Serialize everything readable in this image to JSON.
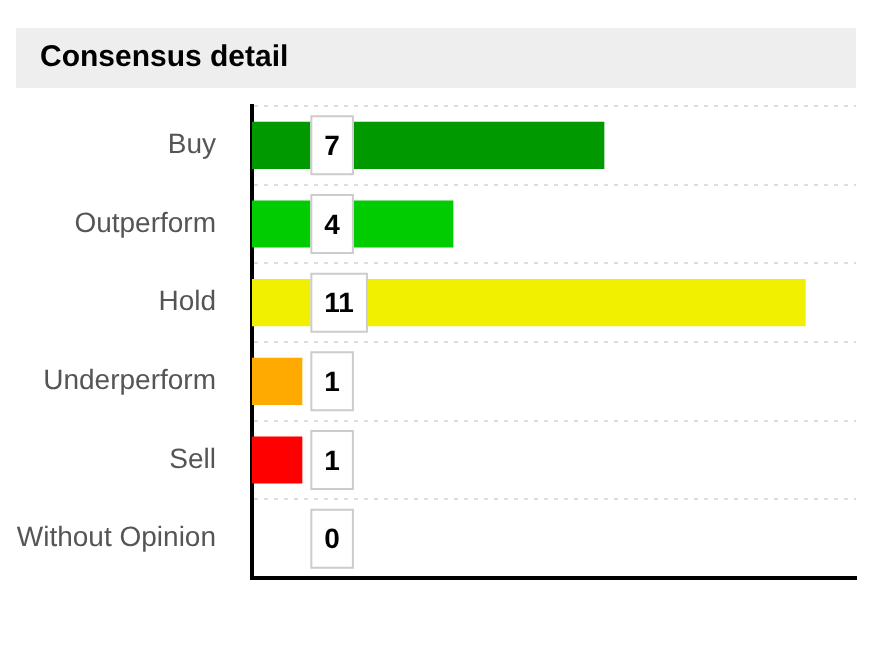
{
  "chart_data": {
    "type": "bar",
    "title": "Consensus detail",
    "orientation": "horizontal",
    "categories": [
      "Buy",
      "Outperform",
      "Hold",
      "Underperform",
      "Sell",
      "Without Opinion"
    ],
    "values": [
      7,
      4,
      11,
      1,
      1,
      0
    ],
    "colors": [
      "#009900",
      "#00cc00",
      "#f0f000",
      "#ffaa00",
      "#ff0000",
      "#999999"
    ],
    "data_labels": true,
    "grid": "y",
    "legend": false
  }
}
